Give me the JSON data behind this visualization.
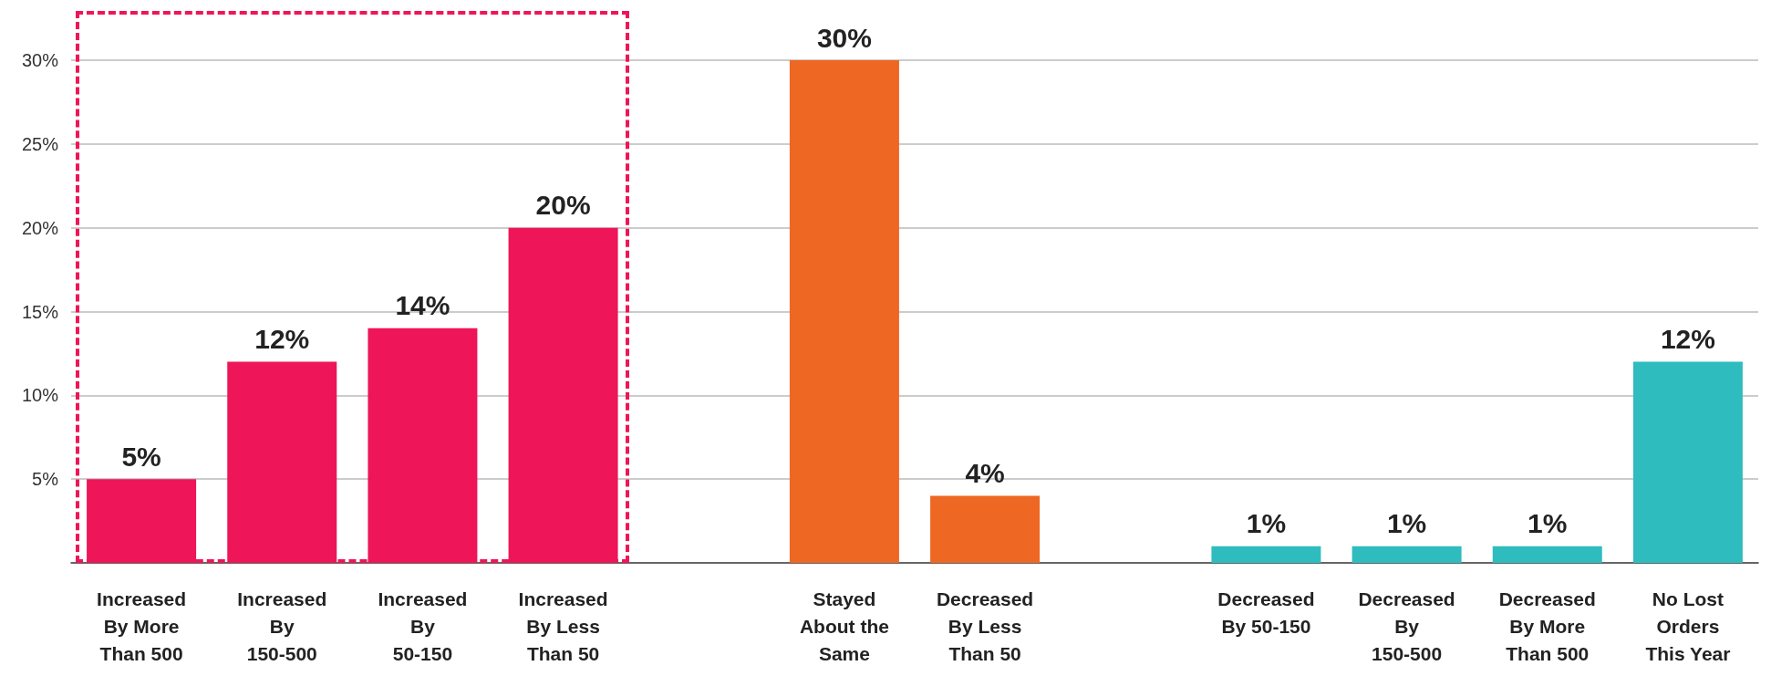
{
  "chart_data": {
    "type": "bar",
    "categories": [
      "Increased\nBy More\nThan 500",
      "Increased\nBy\n150-500",
      "Increased\nBy\n50-150",
      "Increased\nBy Less\nThan 50",
      null,
      "Stayed\nAbout the\nSame",
      "Decreased\nBy Less\nThan 50",
      null,
      "Decreased\nBy 50-150",
      "Decreased\nBy\n150-500",
      "Decreased\nBy More\nThan 500",
      "No Lost\nOrders\nThis Year"
    ],
    "values": [
      5,
      12,
      14,
      20,
      null,
      30,
      4,
      null,
      1,
      1,
      1,
      12
    ],
    "colors": [
      "#ee1558",
      "#ee1558",
      "#ee1558",
      "#ee1558",
      null,
      "#ee6723",
      "#ee6723",
      null,
      "#2ebcbf",
      "#2ebcbf",
      "#2ebcbf",
      "#2ebcbf"
    ],
    "value_labels": [
      "5%",
      "12%",
      "14%",
      "20%",
      null,
      "30%",
      "4%",
      null,
      "1%",
      "1%",
      "1%",
      "12%"
    ],
    "ylim": [
      0,
      30
    ],
    "yticks": [
      {
        "value": 5,
        "label": "5%"
      },
      {
        "value": 10,
        "label": "10%"
      },
      {
        "value": 15,
        "label": "15%"
      },
      {
        "value": 20,
        "label": "20%"
      },
      {
        "value": 25,
        "label": "25%"
      },
      {
        "value": 30,
        "label": "30%"
      }
    ],
    "grid": "y"
  }
}
